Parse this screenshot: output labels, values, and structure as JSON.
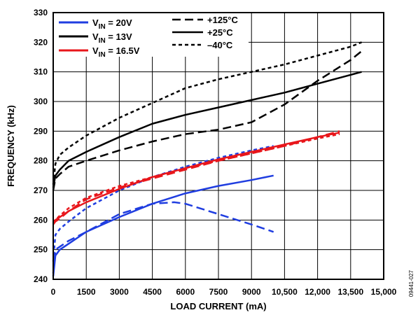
{
  "chart_data": {
    "type": "line",
    "xlabel": "LOAD CURRENT (mA)",
    "ylabel": "FREQUENCY (kHz)",
    "xlim": [
      0,
      15000
    ],
    "ylim": [
      240,
      330
    ],
    "xticks": [
      0,
      1500,
      3000,
      4500,
      6000,
      7500,
      9000,
      10500,
      12000,
      13500,
      15000
    ],
    "xtick_labels": [
      "0",
      "1500",
      "3000",
      "4500",
      "6000",
      "7500",
      "9000",
      "10,500",
      "12,000",
      "13,500",
      "15,000"
    ],
    "yticks": [
      240,
      250,
      260,
      270,
      280,
      290,
      300,
      310,
      320,
      330
    ],
    "ytick_labels": [
      "240",
      "250",
      "260",
      "270",
      "280",
      "290",
      "300",
      "310",
      "320",
      "330"
    ],
    "grid": true,
    "figure_id": "09441-027",
    "legend": {
      "placement": "top-left",
      "colors": [
        {
          "main": "V",
          "sub": "IN",
          "suffix": " = 20V",
          "color": "#1f3de0"
        },
        {
          "main": "V",
          "sub": "IN",
          "suffix": " = 13V",
          "color": "#000000"
        },
        {
          "main": "V",
          "sub": "IN",
          "suffix": " = 16.5V",
          "color": "#e8161b"
        }
      ],
      "styles": [
        {
          "label": "+125°C",
          "style": "long-dash"
        },
        {
          "label": "+25°C",
          "style": "solid"
        },
        {
          "label": "–40°C",
          "style": "short-dash"
        }
      ]
    },
    "series": [
      {
        "color": "#1f3de0",
        "style": "solid",
        "x": [
          0,
          100,
          300,
          700,
          1500,
          3000,
          4500,
          6000,
          7500,
          9000,
          10000
        ],
        "y": [
          241,
          248,
          250,
          252,
          256,
          261,
          265.5,
          269,
          271.5,
          273.5,
          275
        ]
      },
      {
        "color": "#1f3de0",
        "style": "long-dash",
        "x": [
          0,
          100,
          300,
          700,
          1500,
          3000,
          4500,
          5500,
          6000,
          7500,
          9000,
          10000
        ],
        "y": [
          242,
          250,
          251,
          253,
          256,
          262,
          265.5,
          266,
          265.5,
          262,
          258.5,
          256
        ]
      },
      {
        "color": "#1f3de0",
        "style": "short-dash",
        "x": [
          0,
          100,
          300,
          700,
          1500,
          3000,
          4500,
          6000,
          7500,
          9000,
          10000
        ],
        "y": [
          246,
          255,
          257,
          259.5,
          264,
          270,
          274.5,
          278,
          281,
          283.5,
          285
        ]
      },
      {
        "color": "#000000",
        "style": "solid",
        "x": [
          0,
          100,
          300,
          700,
          1500,
          3000,
          4500,
          6000,
          7500,
          9000,
          10500,
          12000,
          13500,
          14000
        ],
        "y": [
          271,
          275,
          277,
          280,
          283,
          288,
          292.5,
          295.5,
          298,
          300.5,
          303,
          306,
          309,
          310
        ]
      },
      {
        "color": "#000000",
        "style": "long-dash",
        "x": [
          0,
          100,
          300,
          700,
          1500,
          3000,
          4500,
          6000,
          7500,
          9000,
          10500,
          12000,
          13500,
          14000
        ],
        "y": [
          270,
          274,
          275.5,
          278,
          280,
          283.5,
          286.5,
          289,
          290.5,
          293,
          299,
          307,
          314,
          317
        ]
      },
      {
        "color": "#000000",
        "style": "short-dash",
        "x": [
          0,
          100,
          300,
          700,
          1500,
          3000,
          4500,
          6000,
          7500,
          9000,
          10500,
          12000,
          13500,
          14000
        ],
        "y": [
          272,
          279,
          282,
          284.5,
          288.5,
          294.5,
          299.5,
          304.5,
          307.5,
          310,
          312.5,
          315.5,
          318.5,
          320
        ]
      },
      {
        "color": "#e8161b",
        "style": "solid",
        "x": [
          0,
          100,
          300,
          700,
          1500,
          3000,
          4500,
          6000,
          7500,
          9000,
          10500,
          12000,
          13000
        ],
        "y": [
          259,
          260,
          261,
          263,
          266,
          270.5,
          274.5,
          277.5,
          280.5,
          283,
          285.5,
          288,
          289.5
        ]
      },
      {
        "color": "#e8161b",
        "style": "long-dash",
        "x": [
          0,
          100,
          300,
          700,
          1500,
          3000,
          4500,
          6000,
          7500,
          9000,
          10500,
          12000,
          13000
        ],
        "y": [
          258.5,
          259.5,
          260.5,
          263,
          267,
          271,
          274,
          277,
          280,
          282.5,
          285,
          288,
          290
        ]
      },
      {
        "color": "#e8161b",
        "style": "short-dash",
        "x": [
          0,
          100,
          300,
          700,
          1500,
          3000,
          4500,
          6000,
          7500,
          9000,
          10500,
          12000,
          13000
        ],
        "y": [
          259,
          260,
          261.5,
          264,
          267.5,
          271.5,
          274.5,
          277.5,
          280,
          282.5,
          285,
          287.5,
          289
        ]
      }
    ]
  }
}
